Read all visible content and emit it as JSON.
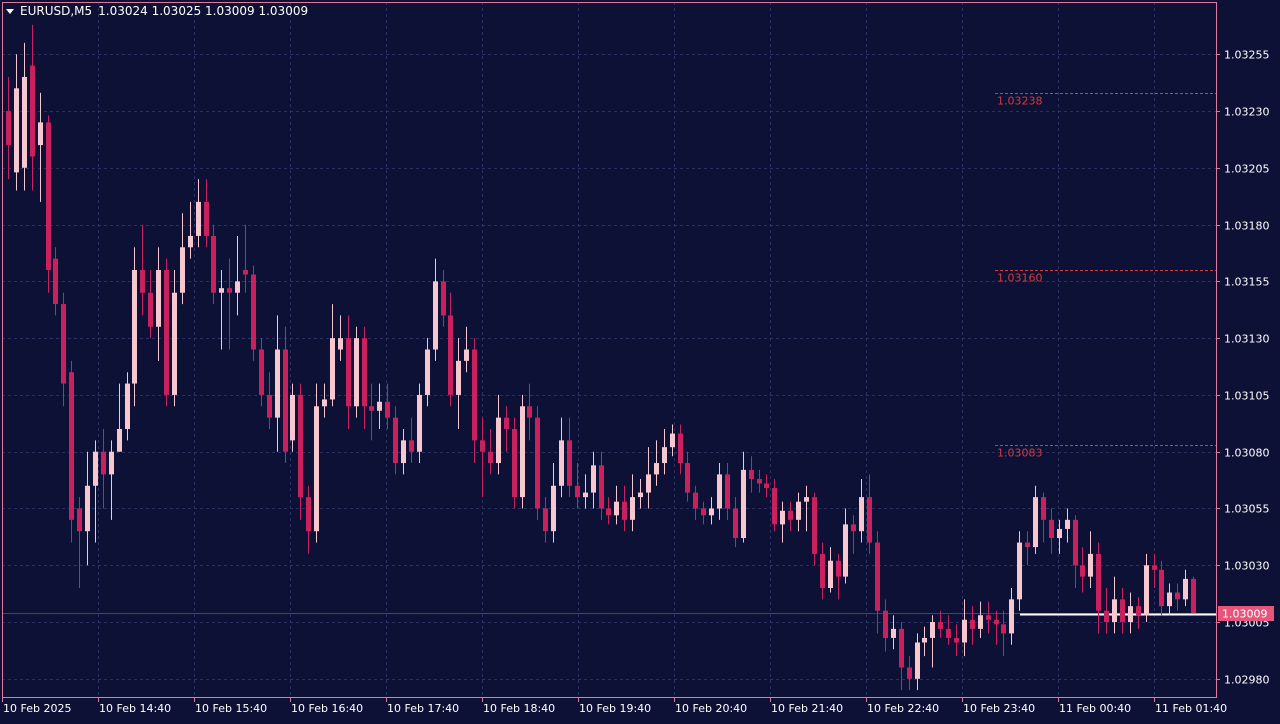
{
  "header": {
    "symbol": "EURUSD,M5",
    "ohlc": "1.03024 1.03025 1.03009 1.03009"
  },
  "current_price_label": "1.03009",
  "colors": {
    "background": "#0d1136",
    "border": "#e07a9a",
    "grid": "#2a3060",
    "bull": "#f6c7cf",
    "bear": "#c8215d",
    "level_line": "#d43b3b",
    "price_tag": "#e8557a",
    "text": "#ffffff"
  },
  "chart_data": {
    "type": "candlestick",
    "timeframe": "M5",
    "ylim": [
      1.02972,
      1.03278
    ],
    "y_ticks": [
      "1.03255",
      "1.03230",
      "1.03205",
      "1.03180",
      "1.03155",
      "1.03130",
      "1.03105",
      "1.03080",
      "1.03055",
      "1.03030",
      "1.03005",
      "1.02980"
    ],
    "x_ticks": [
      "10 Feb 2025",
      "10 Feb 14:40",
      "10 Feb 15:40",
      "10 Feb 16:40",
      "10 Feb 17:40",
      "10 Feb 18:40",
      "10 Feb 19:40",
      "10 Feb 20:40",
      "10 Feb 21:40",
      "10 Feb 22:40",
      "10 Feb 23:40",
      "11 Feb 00:40",
      "11 Feb 01:40"
    ],
    "levels": [
      {
        "label": "1.03238",
        "value": 1.03238
      },
      {
        "label": "1.03160",
        "value": 1.0316
      },
      {
        "label": "1.03083",
        "value": 1.03083
      }
    ],
    "current_price": 1.03009,
    "candles": [
      [
        1.0323,
        1.03215,
        1.03245,
        1.032
      ],
      [
        1.03203,
        1.0324,
        1.03255,
        1.03195
      ],
      [
        1.03205,
        1.03245,
        1.0326,
        1.03195
      ],
      [
        1.0325,
        1.0321,
        1.03268,
        1.03195
      ],
      [
        1.03215,
        1.03225,
        1.03238,
        1.0319
      ],
      [
        1.03225,
        1.0316,
        1.03228,
        1.0315
      ],
      [
        1.03165,
        1.03145,
        1.0317,
        1.0314
      ],
      [
        1.03145,
        1.0311,
        1.0315,
        1.031
      ],
      [
        1.03115,
        1.0305,
        1.0312,
        1.0304
      ],
      [
        1.03055,
        1.03045,
        1.0306,
        1.0302
      ],
      [
        1.03045,
        1.03065,
        1.0308,
        1.0303
      ],
      [
        1.03065,
        1.0308,
        1.03085,
        1.0304
      ],
      [
        1.0308,
        1.0307,
        1.0309,
        1.03055
      ],
      [
        1.0307,
        1.0308,
        1.03085,
        1.0305
      ],
      [
        1.0308,
        1.0309,
        1.0311,
        1.0308
      ],
      [
        1.0309,
        1.0311,
        1.03115,
        1.03085
      ],
      [
        1.0311,
        1.0316,
        1.0317,
        1.031
      ],
      [
        1.0316,
        1.0315,
        1.0318,
        1.0314
      ],
      [
        1.0315,
        1.03135,
        1.0316,
        1.0313
      ],
      [
        1.03135,
        1.0316,
        1.0317,
        1.0312
      ],
      [
        1.0316,
        1.03105,
        1.03165,
        1.031
      ],
      [
        1.03105,
        1.0315,
        1.0316,
        1.031
      ],
      [
        1.0315,
        1.0317,
        1.03185,
        1.03145
      ],
      [
        1.0317,
        1.03175,
        1.0319,
        1.03165
      ],
      [
        1.03175,
        1.0319,
        1.032,
        1.0317
      ],
      [
        1.0319,
        1.03175,
        1.032,
        1.0317
      ],
      [
        1.03175,
        1.0315,
        1.0318,
        1.03145
      ],
      [
        1.0315,
        1.03152,
        1.0316,
        1.03125
      ],
      [
        1.03152,
        1.0315,
        1.03165,
        1.03125
      ],
      [
        1.0315,
        1.03155,
        1.03175,
        1.0314
      ],
      [
        1.0316,
        1.03158,
        1.0318,
        1.0315
      ],
      [
        1.03158,
        1.03125,
        1.03162,
        1.0312
      ],
      [
        1.03125,
        1.03105,
        1.0313,
        1.031
      ],
      [
        1.03105,
        1.03095,
        1.03115,
        1.0309
      ],
      [
        1.03095,
        1.03125,
        1.0314,
        1.0308
      ],
      [
        1.03125,
        1.0308,
        1.03135,
        1.03075
      ],
      [
        1.03085,
        1.03105,
        1.0311,
        1.0308
      ],
      [
        1.03105,
        1.0306,
        1.0311,
        1.0305
      ],
      [
        1.0306,
        1.03045,
        1.03065,
        1.03035
      ],
      [
        1.03045,
        1.031,
        1.0311,
        1.0304
      ],
      [
        1.031,
        1.03103,
        1.0311,
        1.03095
      ],
      [
        1.03103,
        1.0313,
        1.03145,
        1.031
      ],
      [
        1.03125,
        1.0313,
        1.0314,
        1.0312
      ],
      [
        1.0313,
        1.031,
        1.0314,
        1.0309
      ],
      [
        1.031,
        1.0313,
        1.03135,
        1.03095
      ],
      [
        1.0313,
        1.031,
        1.03135,
        1.0309
      ],
      [
        1.031,
        1.03098,
        1.0311,
        1.03085
      ],
      [
        1.03098,
        1.03102,
        1.0311,
        1.0309
      ],
      [
        1.03102,
        1.03095,
        1.0311,
        1.0309
      ],
      [
        1.03095,
        1.03075,
        1.031,
        1.0307
      ],
      [
        1.03075,
        1.03085,
        1.0309,
        1.0307
      ],
      [
        1.03085,
        1.0308,
        1.03095,
        1.03075
      ],
      [
        1.0308,
        1.03105,
        1.0311,
        1.03075
      ],
      [
        1.03105,
        1.03125,
        1.0313,
        1.031
      ],
      [
        1.03125,
        1.03155,
        1.03165,
        1.0312
      ],
      [
        1.03155,
        1.0314,
        1.0316,
        1.03135
      ],
      [
        1.0314,
        1.03105,
        1.0315,
        1.031
      ],
      [
        1.03105,
        1.0312,
        1.0313,
        1.0309
      ],
      [
        1.0312,
        1.03125,
        1.03135,
        1.03115
      ],
      [
        1.03125,
        1.03085,
        1.0313,
        1.03075
      ],
      [
        1.03085,
        1.0308,
        1.03095,
        1.0306
      ],
      [
        1.0308,
        1.03075,
        1.0309,
        1.0307
      ],
      [
        1.03075,
        1.03095,
        1.03105,
        1.0307
      ],
      [
        1.03095,
        1.0309,
        1.031,
        1.0308
      ],
      [
        1.0309,
        1.0306,
        1.03095,
        1.03055
      ],
      [
        1.0306,
        1.031,
        1.03105,
        1.03055
      ],
      [
        1.031,
        1.03095,
        1.0311,
        1.03085
      ],
      [
        1.03095,
        1.03055,
        1.031,
        1.0305
      ],
      [
        1.03055,
        1.03045,
        1.0306,
        1.0304
      ],
      [
        1.03045,
        1.03065,
        1.03075,
        1.0304
      ],
      [
        1.03065,
        1.03085,
        1.03095,
        1.0306
      ],
      [
        1.03085,
        1.03065,
        1.03095,
        1.0306
      ],
      [
        1.03065,
        1.0306,
        1.03075,
        1.03055
      ],
      [
        1.0306,
        1.03062,
        1.0307,
        1.03055
      ],
      [
        1.03062,
        1.03074,
        1.0308,
        1.03055
      ],
      [
        1.03074,
        1.03055,
        1.0308,
        1.0305
      ],
      [
        1.03055,
        1.03052,
        1.0306,
        1.03048
      ],
      [
        1.03052,
        1.03058,
        1.03065,
        1.03048
      ],
      [
        1.03058,
        1.0305,
        1.03065,
        1.03045
      ],
      [
        1.0305,
        1.0306,
        1.0307,
        1.03045
      ],
      [
        1.0306,
        1.03062,
        1.03068,
        1.03055
      ],
      [
        1.03062,
        1.0307,
        1.03082,
        1.03055
      ],
      [
        1.0307,
        1.03075,
        1.03085,
        1.03065
      ],
      [
        1.03075,
        1.03082,
        1.0309,
        1.0307
      ],
      [
        1.03082,
        1.03088,
        1.03092,
        1.03078
      ],
      [
        1.03088,
        1.03075,
        1.03092,
        1.0307
      ],
      [
        1.03075,
        1.03062,
        1.0308,
        1.03058
      ],
      [
        1.03062,
        1.03055,
        1.03065,
        1.0305
      ],
      [
        1.03055,
        1.03052,
        1.03058,
        1.03048
      ],
      [
        1.03052,
        1.03055,
        1.0306,
        1.03048
      ],
      [
        1.03055,
        1.0307,
        1.03075,
        1.0305
      ],
      [
        1.0307,
        1.03055,
        1.03075,
        1.0305
      ],
      [
        1.03055,
        1.03042,
        1.0306,
        1.03038
      ],
      [
        1.03042,
        1.03072,
        1.0308,
        1.0304
      ],
      [
        1.03072,
        1.03068,
        1.03078,
        1.03062
      ],
      [
        1.03068,
        1.03066,
        1.03072,
        1.03062
      ],
      [
        1.03066,
        1.03064,
        1.0307,
        1.0306
      ],
      [
        1.03064,
        1.03048,
        1.03068,
        1.03045
      ],
      [
        1.03048,
        1.03054,
        1.03058,
        1.0304
      ],
      [
        1.03054,
        1.0305,
        1.03058,
        1.03045
      ],
      [
        1.0305,
        1.03058,
        1.03062,
        1.03045
      ],
      [
        1.03058,
        1.0306,
        1.03065,
        1.03045
      ],
      [
        1.0306,
        1.03035,
        1.03062,
        1.0303
      ],
      [
        1.03035,
        1.0302,
        1.0304,
        1.03015
      ],
      [
        1.0302,
        1.03032,
        1.03038,
        1.03018
      ],
      [
        1.03032,
        1.03025,
        1.03035,
        1.03015
      ],
      [
        1.03025,
        1.03048,
        1.03055,
        1.03022
      ],
      [
        1.03048,
        1.03045,
        1.03052,
        1.03035
      ],
      [
        1.03045,
        1.0306,
        1.03068,
        1.0304
      ],
      [
        1.0306,
        1.0304,
        1.0307,
        1.03035
      ],
      [
        1.0304,
        1.0301,
        1.03045,
        1.03
      ],
      [
        1.0301,
        1.02998,
        1.03015,
        1.02992
      ],
      [
        1.02998,
        1.03002,
        1.03008,
        1.02993
      ],
      [
        1.03002,
        1.02985,
        1.03005,
        1.02975
      ],
      [
        1.02985,
        1.0298,
        1.0299,
        1.02975
      ],
      [
        1.0298,
        1.02996,
        1.03,
        1.02975
      ],
      [
        1.02996,
        1.02998,
        1.03003,
        1.0299
      ],
      [
        1.02998,
        1.03005,
        1.03008,
        1.02985
      ],
      [
        1.03005,
        1.03002,
        1.0301,
        1.02998
      ],
      [
        1.03002,
        1.02998,
        1.03008,
        1.02995
      ],
      [
        1.02998,
        1.02996,
        1.03004,
        1.0299
      ],
      [
        1.02996,
        1.03006,
        1.03015,
        1.0299
      ],
      [
        1.03006,
        1.03002,
        1.03012,
        1.02995
      ],
      [
        1.03002,
        1.03008,
        1.03014,
        1.02998
      ],
      [
        1.03008,
        1.03006,
        1.03014,
        1.03
      ],
      [
        1.03006,
        1.03004,
        1.0301,
        1.02995
      ],
      [
        1.03004,
        1.03,
        1.0301,
        1.0299
      ],
      [
        1.03,
        1.03015,
        1.0302,
        1.02995
      ],
      [
        1.03015,
        1.0304,
        1.03045,
        1.0301
      ],
      [
        1.0304,
        1.03038,
        1.03045,
        1.0303
      ],
      [
        1.03038,
        1.0306,
        1.03065,
        1.03035
      ],
      [
        1.0306,
        1.0305,
        1.03062,
        1.0304
      ],
      [
        1.0305,
        1.03042,
        1.03055,
        1.03035
      ],
      [
        1.03042,
        1.03046,
        1.0305,
        1.03035
      ],
      [
        1.03046,
        1.0305,
        1.03055,
        1.0304
      ],
      [
        1.0305,
        1.0303,
        1.03052,
        1.0302
      ],
      [
        1.0303,
        1.03025,
        1.03038,
        1.03018
      ],
      [
        1.03025,
        1.03035,
        1.03045,
        1.0302
      ],
      [
        1.03035,
        1.0301,
        1.0304,
        1.03
      ],
      [
        1.0301,
        1.03005,
        1.0302,
        1.03
      ],
      [
        1.03005,
        1.03015,
        1.03025,
        1.03
      ],
      [
        1.03015,
        1.03005,
        1.0302,
        1.03
      ],
      [
        1.03005,
        1.03012,
        1.03018,
        1.03
      ],
      [
        1.03012,
        1.03008,
        1.03016,
        1.03002
      ],
      [
        1.03008,
        1.0303,
        1.03035,
        1.03005
      ],
      [
        1.0303,
        1.03028,
        1.03035,
        1.0302
      ],
      [
        1.03028,
        1.03012,
        1.03032,
        1.03008
      ],
      [
        1.03012,
        1.03018,
        1.03022,
        1.03008
      ],
      [
        1.03018,
        1.03015,
        1.03022,
        1.0301
      ],
      [
        1.03015,
        1.03024,
        1.03028,
        1.03012
      ],
      [
        1.03024,
        1.03009,
        1.03025,
        1.03009
      ]
    ]
  }
}
